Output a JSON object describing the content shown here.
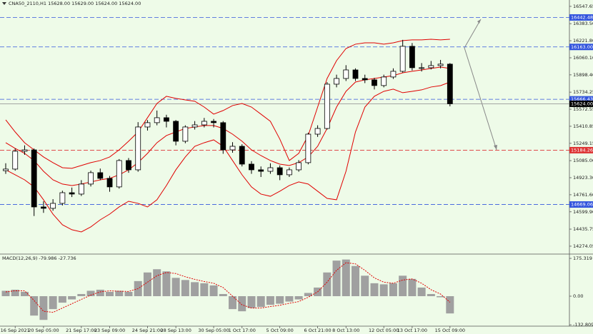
{
  "chart_data": [
    {
      "type": "candlestick",
      "title": "CNA50_2110,H1  15628.00 15629.00 15624.00 15624.00",
      "categories": [
        null,
        "16 Sep 2021",
        null,
        null,
        "20 Sep 05:00",
        null,
        null,
        null,
        "21 Sep 17:00",
        null,
        null,
        "23 Sep 09:00",
        null,
        null,
        null,
        "24 Sep 21:00",
        null,
        null,
        "28 Sep 13:00",
        null,
        null,
        null,
        "30 Sep 05:00",
        null,
        null,
        "1 Oct 17:00",
        null,
        null,
        null,
        "5 Oct 09:00",
        null,
        null,
        null,
        "6 Oct 21:00",
        null,
        null,
        "8 Oct 13:00",
        null,
        null,
        null,
        "12 Oct 05:00",
        null,
        null,
        "13 Oct 17:00",
        null,
        null,
        null,
        "15 Oct 09:00"
      ],
      "candles": [
        [
          14990,
          15060,
          14960,
          15005
        ],
        [
          15005,
          15200,
          14990,
          15174
        ],
        [
          15174,
          15230,
          15140,
          15187
        ],
        [
          15187,
          15200,
          14560,
          14646
        ],
        [
          14646,
          14700,
          14590,
          14633
        ],
        [
          14633,
          14720,
          14610,
          14680
        ],
        [
          14680,
          14800,
          14660,
          14781
        ],
        [
          14781,
          14830,
          14740,
          14768
        ],
        [
          14768,
          14900,
          14750,
          14863
        ],
        [
          14863,
          14990,
          14840,
          14971
        ],
        [
          14971,
          15010,
          14900,
          14917
        ],
        [
          14917,
          14940,
          14790,
          14836
        ],
        [
          14836,
          15100,
          14820,
          15086
        ],
        [
          15086,
          15110,
          14970,
          14998
        ],
        [
          14998,
          15450,
          14980,
          15404
        ],
        [
          15404,
          15470,
          15370,
          15445
        ],
        [
          15445,
          15560,
          15420,
          15492
        ],
        [
          15492,
          15520,
          15400,
          15458
        ],
        [
          15458,
          15470,
          15230,
          15269
        ],
        [
          15269,
          15420,
          15250,
          15404
        ],
        [
          15404,
          15460,
          15380,
          15424
        ],
        [
          15424,
          15490,
          15400,
          15458
        ],
        [
          15458,
          15480,
          15400,
          15445
        ],
        [
          15445,
          15460,
          15150,
          15187
        ],
        [
          15187,
          15260,
          15160,
          15221
        ],
        [
          15221,
          15240,
          15030,
          15052
        ],
        [
          15052,
          15080,
          14960,
          14998
        ],
        [
          14998,
          15030,
          14930,
          14984
        ],
        [
          14984,
          15060,
          14960,
          15018
        ],
        [
          15018,
          15040,
          14900,
          14951
        ],
        [
          14951,
          15020,
          14930,
          14998
        ],
        [
          14998,
          15090,
          14980,
          15066
        ],
        [
          15066,
          15350,
          15050,
          15336
        ],
        [
          15336,
          15420,
          15310,
          15390
        ],
        [
          15390,
          15830,
          15380,
          15810
        ],
        [
          15810,
          15900,
          15780,
          15864
        ],
        [
          15864,
          15990,
          15840,
          15945
        ],
        [
          15945,
          15960,
          15840,
          15864
        ],
        [
          15864,
          15900,
          15820,
          15851
        ],
        [
          15851,
          15870,
          15760,
          15797
        ],
        [
          15797,
          15900,
          15780,
          15878
        ],
        [
          15878,
          15960,
          15860,
          15932
        ],
        [
          15932,
          16230,
          15920,
          16169
        ],
        [
          16169,
          16200,
          15940,
          15966
        ],
        [
          15966,
          16010,
          15930,
          15966
        ],
        [
          15966,
          16030,
          15950,
          15986
        ],
        [
          15986,
          16040,
          15960,
          16000
        ],
        [
          16000,
          16010,
          15600,
          15624
        ]
      ],
      "candle_color": "#000000",
      "bands": {
        "color": "#e00000",
        "upper": [
          15472,
          15357,
          15255,
          15187,
          15120,
          15066,
          15018,
          15012,
          15039,
          15066,
          15086,
          15120,
          15187,
          15269,
          15357,
          15492,
          15627,
          15695,
          15675,
          15661,
          15648,
          15593,
          15526,
          15560,
          15607,
          15627,
          15593,
          15526,
          15458,
          15289,
          15086,
          15154,
          15323,
          15593,
          15864,
          16033,
          16148,
          16189,
          16202,
          16202,
          16189,
          16202,
          16223,
          16230,
          16230,
          16236,
          16230,
          16236
        ],
        "middle": [
          15255,
          15201,
          15154,
          15086,
          14984,
          14903,
          14863,
          14849,
          14863,
          14883,
          14903,
          14917,
          14951,
          14998,
          15066,
          15154,
          15255,
          15323,
          15357,
          15390,
          15404,
          15418,
          15418,
          15390,
          15336,
          15269,
          15187,
          15133,
          15086,
          15052,
          15039,
          15066,
          15120,
          15221,
          15390,
          15593,
          15742,
          15830,
          15851,
          15864,
          15878,
          15891,
          15918,
          15932,
          15945,
          15959,
          15972,
          15959
        ],
        "lower": [
          14998,
          14951,
          14903,
          14836,
          14714,
          14578,
          14477,
          14430,
          14409,
          14457,
          14524,
          14578,
          14646,
          14700,
          14680,
          14646,
          14714,
          14849,
          14998,
          15120,
          15221,
          15255,
          15282,
          15221,
          15086,
          14951,
          14836,
          14768,
          14747,
          14795,
          14849,
          14883,
          14863,
          14795,
          14727,
          14714,
          14984,
          15357,
          15593,
          15695,
          15742,
          15763,
          15729,
          15742,
          15756,
          15783,
          15796,
          15830
        ]
      },
      "levels": [
        {
          "value": 16442.48,
          "label": "16442.48",
          "color": "#3355dd",
          "dashed": true
        },
        {
          "value": 16163,
          "label": "16163.00",
          "color": "#3355dd",
          "dashed": true
        },
        {
          "value": 15666.43,
          "label": "15666.43",
          "color": "#3355dd",
          "dashed": true
        },
        {
          "value": 15624,
          "label": "15624.00",
          "color": "#000000",
          "dashed": false
        },
        {
          "value": 15184.26,
          "label": "15184.26",
          "color": "#dd3333",
          "dashed": true
        },
        {
          "value": 14669.06,
          "label": "14669.06",
          "color": "#3355dd",
          "dashed": true
        }
      ],
      "ylim": [
        14206,
        16608
      ],
      "yticks": [
        {
          "value": 16547.65,
          "label": "16547.65"
        },
        {
          "value": 16383.5,
          "label": "16383.50"
        },
        {
          "value": 16221.8,
          "label": "16221.80"
        },
        {
          "value": 16060.1,
          "label": "16060.10"
        },
        {
          "value": 15898.4,
          "label": "15898.40"
        },
        {
          "value": 15734.25,
          "label": "15734.25"
        },
        {
          "value": 15572.55,
          "label": "15572.55"
        },
        {
          "value": 15410.85,
          "label": "15410.85"
        },
        {
          "value": 15249.15,
          "label": "15249.15"
        },
        {
          "value": 15085,
          "label": "15085.00"
        },
        {
          "value": 14923.3,
          "label": "14923.30"
        },
        {
          "value": 14761.6,
          "label": "14761.60"
        },
        {
          "value": 14599.9,
          "label": "14599.90"
        },
        {
          "value": 14435.75,
          "label": "14435.75"
        },
        {
          "value": 14274.05,
          "label": "14274.05"
        }
      ]
    },
    {
      "type": "macd",
      "title": "MACD(12,26,9) -79.986 -27.736",
      "histogram": [
        25,
        30,
        20,
        -90,
        -110,
        -60,
        -30,
        -15,
        10,
        25,
        30,
        20,
        25,
        20,
        70,
        110,
        125,
        115,
        85,
        75,
        65,
        60,
        50,
        10,
        -60,
        -70,
        -55,
        -50,
        -40,
        -35,
        -25,
        -15,
        15,
        40,
        110,
        165,
        170,
        140,
        95,
        60,
        55,
        60,
        95,
        80,
        40,
        10,
        -5,
        -80
      ],
      "histogram_color": "#a0a0a0",
      "signal": [
        20,
        25,
        25,
        -20,
        -70,
        -75,
        -55,
        -35,
        -15,
        5,
        20,
        25,
        23,
        22,
        35,
        65,
        95,
        110,
        105,
        90,
        78,
        68,
        60,
        40,
        0,
        -40,
        -55,
        -55,
        -48,
        -42,
        -33,
        -25,
        -5,
        20,
        65,
        120,
        155,
        150,
        120,
        85,
        65,
        60,
        75,
        80,
        60,
        30,
        10,
        -28
      ],
      "signal_color": "#e00000",
      "ylim": [
        -139,
        192
      ],
      "yticks": [
        175.319,
        {
          "value": 0,
          "label": "0.00"
        },
        -132.809
      ]
    }
  ]
}
